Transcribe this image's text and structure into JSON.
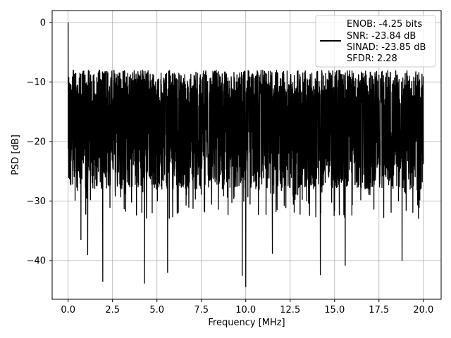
{
  "chart_data": {
    "type": "line",
    "title": "",
    "xlabel": "Frequency [MHz]",
    "ylabel": "PSD [dB]",
    "xlim": [
      -0.9,
      21.0
    ],
    "ylim": [
      -46.5,
      2.0
    ],
    "x_ticks": [
      0.0,
      2.5,
      5.0,
      7.5,
      10.0,
      12.5,
      15.0,
      17.5,
      20.0
    ],
    "x_tick_labels": [
      "0.0",
      "2.5",
      "5.0",
      "7.5",
      "10.0",
      "12.5",
      "15.0",
      "17.5",
      "20.0"
    ],
    "y_ticks": [
      0,
      -10,
      -20,
      -30,
      -40
    ],
    "y_tick_labels": [
      "0",
      "−10",
      "−20",
      "−30",
      "−40"
    ],
    "grid": true,
    "legend_position": "top-right",
    "series": [
      {
        "name": "ENOB: -4.25 bits\nSNR: -23.84 dB\nSINAD: -23.85 dB\nSFDR: 2.28",
        "color": "#000000",
        "x_range": [
          0.0,
          20.0
        ],
        "peak": {
          "x": 0.0,
          "y": 0.0
        },
        "noise_floor_typical": [
          -25,
          -8
        ],
        "notable_dips": [
          {
            "x": 0.72,
            "y": -36.5
          },
          {
            "x": 1.1,
            "y": -39.0
          },
          {
            "x": 1.95,
            "y": -43.5
          },
          {
            "x": 4.3,
            "y": -43.8
          },
          {
            "x": 5.6,
            "y": -42.0
          },
          {
            "x": 9.8,
            "y": -42.5
          },
          {
            "x": 10.0,
            "y": -44.4
          },
          {
            "x": 11.5,
            "y": -38.8
          },
          {
            "x": 14.2,
            "y": -42.4
          },
          {
            "x": 15.6,
            "y": -40.8
          },
          {
            "x": 18.8,
            "y": -40.0
          }
        ]
      }
    ],
    "legend_lines": [
      "ENOB: -4.25 bits",
      "SNR: -23.84 dB",
      "SINAD: -23.85 dB",
      "SFDR: 2.28"
    ]
  }
}
